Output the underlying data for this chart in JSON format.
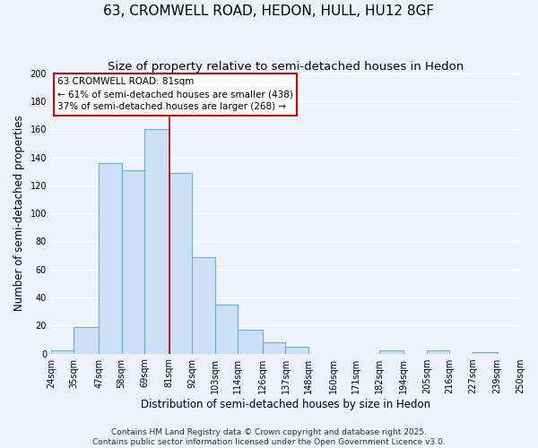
{
  "title": "63, CROMWELL ROAD, HEDON, HULL, HU12 8GF",
  "subtitle": "Size of property relative to semi-detached houses in Hedon",
  "xlabel": "Distribution of semi-detached houses by size in Hedon",
  "ylabel": "Number of semi-detached properties",
  "bins": [
    24,
    35,
    47,
    58,
    69,
    81,
    92,
    103,
    114,
    126,
    137,
    148,
    160,
    171,
    182,
    194,
    205,
    216,
    227,
    239,
    250
  ],
  "counts": [
    2,
    19,
    136,
    131,
    160,
    129,
    69,
    35,
    17,
    8,
    5,
    0,
    0,
    0,
    2,
    0,
    2,
    0,
    1,
    0
  ],
  "bar_color": "#cce0f5",
  "bar_edge_color": "#6aaed6",
  "marker_value": 81,
  "marker_color": "#cc0000",
  "annotation_title": "63 CROMWELL ROAD: 81sqm",
  "annotation_line1": "← 61% of semi-detached houses are smaller (438)",
  "annotation_line2": "37% of semi-detached houses are larger (268) →",
  "annotation_box_color": "#ffffff",
  "annotation_box_edge": "#cc0000",
  "ylim": [
    0,
    200
  ],
  "yticks": [
    0,
    20,
    40,
    60,
    80,
    100,
    120,
    140,
    160,
    180,
    200
  ],
  "tick_labels": [
    "24sqm",
    "35sqm",
    "47sqm",
    "58sqm",
    "69sqm",
    "81sqm",
    "92sqm",
    "103sqm",
    "114sqm",
    "126sqm",
    "137sqm",
    "148sqm",
    "160sqm",
    "171sqm",
    "182sqm",
    "194sqm",
    "205sqm",
    "216sqm",
    "227sqm",
    "239sqm",
    "250sqm"
  ],
  "footer1": "Contains HM Land Registry data © Crown copyright and database right 2025.",
  "footer2": "Contains public sector information licensed under the Open Government Licence v3.0.",
  "bg_color": "#eef2fb",
  "grid_color": "#ffffff",
  "title_fontsize": 11,
  "subtitle_fontsize": 9.5,
  "axis_label_fontsize": 8.5,
  "tick_fontsize": 7,
  "annot_fontsize": 7.5,
  "footer_fontsize": 6.5
}
